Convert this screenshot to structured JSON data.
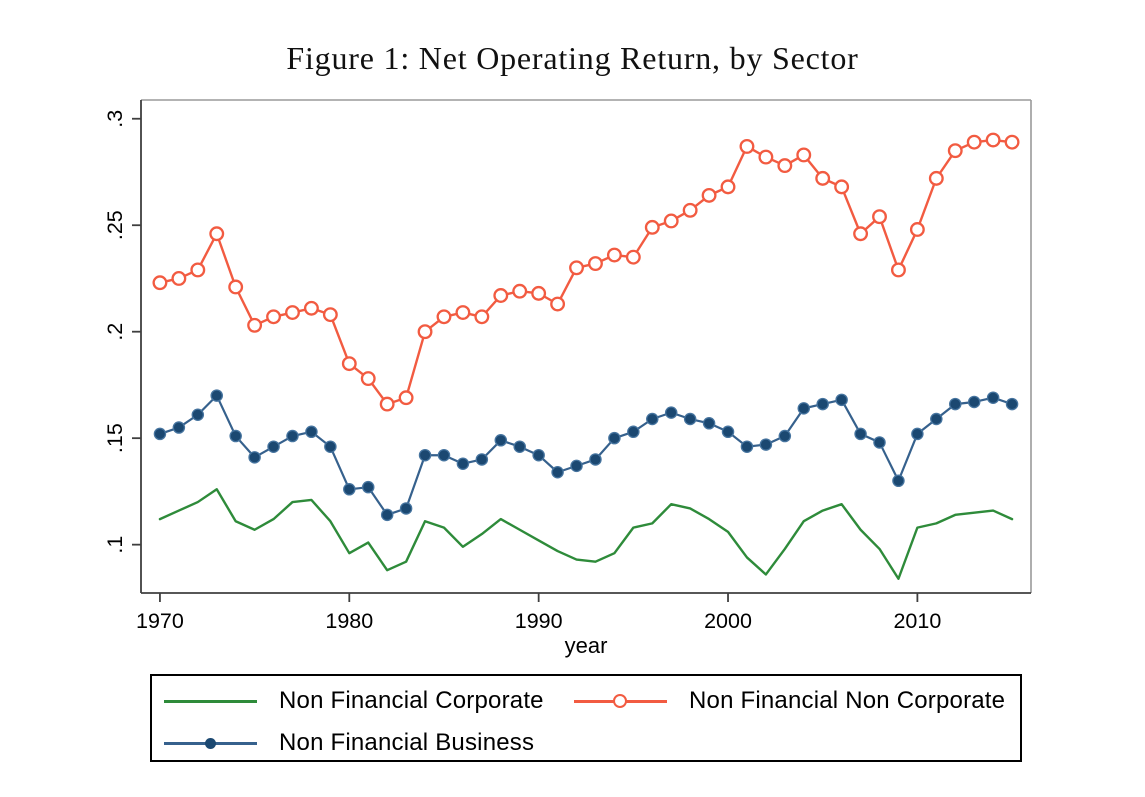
{
  "figure": {
    "title": "Figure 1: Net Operating Return, by Sector"
  },
  "axes": {
    "x": {
      "label": "year",
      "range": [
        1969,
        2016
      ],
      "ticks": [
        {
          "value": 1970,
          "label": "1970"
        },
        {
          "value": 1980,
          "label": "1980"
        },
        {
          "value": 1990,
          "label": "1990"
        },
        {
          "value": 2000,
          "label": "2000"
        },
        {
          "value": 2010,
          "label": "2010"
        }
      ]
    },
    "y": {
      "label": "",
      "range": [
        0.0773,
        0.3088
      ],
      "ticks": [
        {
          "value": 0.1,
          "label": ".1"
        },
        {
          "value": 0.15,
          "label": ".15"
        },
        {
          "value": 0.2,
          "label": ".2"
        },
        {
          "value": 0.25,
          "label": ".25"
        },
        {
          "value": 0.3,
          "label": ".3"
        }
      ]
    }
  },
  "colors": {
    "green": "#2e8b3a",
    "orange": "#f25b41",
    "navy_line": "#36618d",
    "navy_fill": "#1b4871",
    "navy_edge": "#46749f",
    "frame_light": "#9a9a9a",
    "frame_dark": "#3f3f3f"
  },
  "chart_data": {
    "type": "line",
    "title": "Figure 1: Net Operating Return, by Sector",
    "xlabel": "year",
    "ylabel": "",
    "xlim": [
      1969,
      2016
    ],
    "ylim": [
      0.0773,
      0.3088
    ],
    "grid": false,
    "legend_position": "bottom",
    "x": [
      1970,
      1971,
      1972,
      1973,
      1974,
      1975,
      1976,
      1977,
      1978,
      1979,
      1980,
      1981,
      1982,
      1983,
      1984,
      1985,
      1986,
      1987,
      1988,
      1989,
      1990,
      1991,
      1992,
      1993,
      1994,
      1995,
      1996,
      1997,
      1998,
      1999,
      2000,
      2001,
      2002,
      2003,
      2004,
      2005,
      2006,
      2007,
      2008,
      2009,
      2010,
      2011,
      2012,
      2013,
      2014,
      2015
    ],
    "series": [
      {
        "name": "Non Financial Corporate",
        "marker": "none",
        "line_color": "#2e8b3a",
        "marker_color": "#2e8b3a",
        "line_width": 2.4,
        "values": [
          0.112,
          0.116,
          0.12,
          0.126,
          0.111,
          0.107,
          0.112,
          0.12,
          0.121,
          0.111,
          0.096,
          0.101,
          0.088,
          0.092,
          0.111,
          0.108,
          0.099,
          0.105,
          0.112,
          0.107,
          0.102,
          0.097,
          0.093,
          0.092,
          0.096,
          0.108,
          0.11,
          0.119,
          0.117,
          0.112,
          0.106,
          0.094,
          0.086,
          0.098,
          0.111,
          0.116,
          0.119,
          0.107,
          0.098,
          0.084,
          0.108,
          0.11,
          0.114,
          0.115,
          0.116,
          0.112
        ]
      },
      {
        "name": "Non Financial Non Corporate",
        "marker": "open-circle",
        "line_color": "#f25b41",
        "marker_color": "#f25b41",
        "line_width": 2.4,
        "values": [
          0.223,
          0.225,
          0.229,
          0.246,
          0.221,
          0.203,
          0.207,
          0.209,
          0.211,
          0.208,
          0.185,
          0.178,
          0.166,
          0.169,
          0.2,
          0.207,
          0.209,
          0.207,
          0.217,
          0.219,
          0.218,
          0.213,
          0.23,
          0.232,
          0.236,
          0.235,
          0.249,
          0.252,
          0.257,
          0.264,
          0.268,
          0.287,
          0.282,
          0.278,
          0.283,
          0.272,
          0.268,
          0.246,
          0.254,
          0.229,
          0.248,
          0.272,
          0.285,
          0.289,
          0.29,
          0.289
        ]
      },
      {
        "name": "Non Financial Business",
        "marker": "filled-circle",
        "line_color": "#36618d",
        "marker_color": "#1b4871",
        "marker_edge": "#46749f",
        "line_width": 2.2,
        "values": [
          0.152,
          0.155,
          0.161,
          0.17,
          0.151,
          0.141,
          0.146,
          0.151,
          0.153,
          0.146,
          0.126,
          0.127,
          0.114,
          0.117,
          0.142,
          0.142,
          0.138,
          0.14,
          0.149,
          0.146,
          0.142,
          0.134,
          0.137,
          0.14,
          0.15,
          0.153,
          0.159,
          0.162,
          0.159,
          0.157,
          0.153,
          0.146,
          0.147,
          0.151,
          0.164,
          0.166,
          0.168,
          0.152,
          0.148,
          0.13,
          0.152,
          0.159,
          0.166,
          0.167,
          0.169,
          0.166
        ]
      }
    ]
  }
}
